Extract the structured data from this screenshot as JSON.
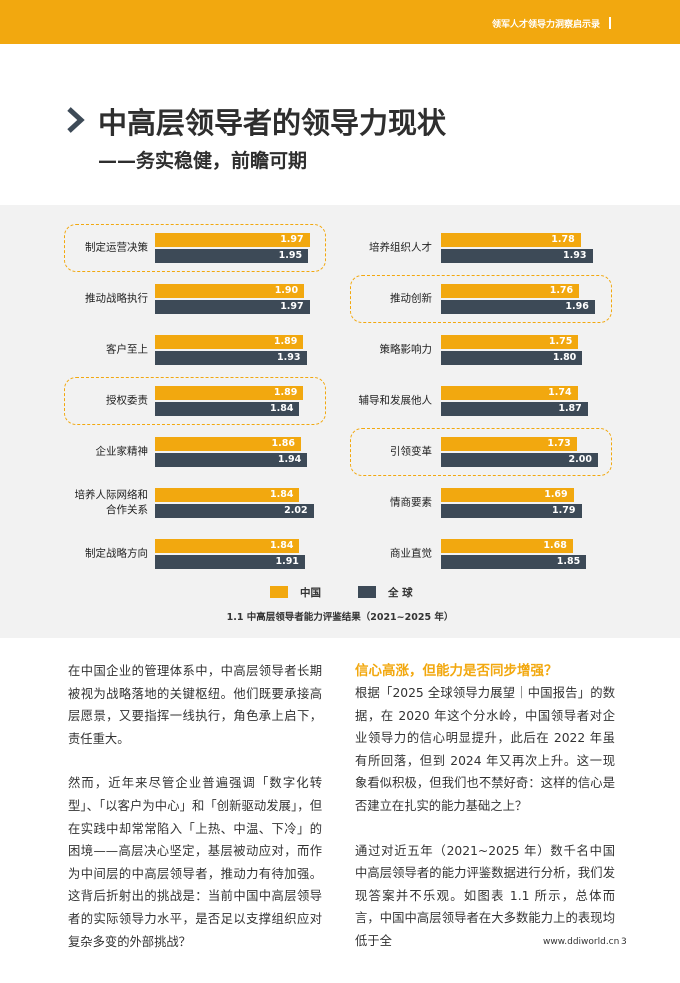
{
  "header": {
    "series_title": "领军人才领导力洞察启示录"
  },
  "title": "中高层领导者的领导力现状",
  "subtitle": "——务实稳健，前瞻可期",
  "chart_data": {
    "type": "bar",
    "orientation": "horizontal",
    "categories": [
      "制定运营决策",
      "推动战略执行",
      "客户至上",
      "授权委责",
      "企业家精神",
      "培养人际网络和\n合作关系",
      "制定战略方向",
      "培养组织人才",
      "推动创新",
      "策略影响力",
      "辅导和发展他人",
      "引领变革",
      "情商要素",
      "商业直觉"
    ],
    "series": [
      {
        "name": "中国",
        "color": "#f2a80f",
        "values": [
          1.97,
          1.9,
          1.89,
          1.89,
          1.86,
          1.84,
          1.84,
          1.78,
          1.76,
          1.75,
          1.74,
          1.73,
          1.69,
          1.68
        ],
        "value_labels": [
          "1.97",
          "1.90",
          "1.89",
          "1.89",
          "1.86",
          "1.84",
          "1.84",
          "1.78",
          "1.76",
          "1.75",
          "1.74",
          "1.73",
          "1.69",
          "1.68"
        ]
      },
      {
        "name": "全 球",
        "color": "#3d4a57",
        "values": [
          1.95,
          1.97,
          1.93,
          1.84,
          1.94,
          2.02,
          1.91,
          1.93,
          1.96,
          1.8,
          1.87,
          2.0,
          1.79,
          1.85
        ],
        "value_labels": [
          "1.95",
          "1.97",
          "1.93",
          "1.84",
          "1.94",
          "2.02",
          "1.91",
          "1.93",
          "1.96",
          "1.80",
          "1.87",
          "2.00",
          "1.79",
          "1.85"
        ]
      }
    ],
    "highlighted": [
      0,
      3,
      8,
      11
    ],
    "caption": "1.1 中高层领导者能力评鉴结果（2021~2025 年）"
  },
  "body": {
    "left": [
      "在中国企业的管理体系中，中高层领导者长期被视为战略落地的关键枢纽。他们既要承接高层愿景，又要指挥一线执行，角色承上启下，责任重大。",
      "然而，近年来尽管企业普遍强调「数字化转型」、「以客户为中心」和「创新驱动发展」，但在实践中却常常陷入「上热、中温、下冷」的困境——高层决心坚定，基层被动应对，而作为中间层的中高层领导者，推动力有待加强。这背后折射出的挑战是：当前中国中高层领导者的实际领导力水平，是否足以支撑组织应对复杂多变的外部挑战？"
    ],
    "right_heading": "信心高涨，但能力是否同步增强？",
    "right": [
      "根据「2025 全球领导力展望｜中国报告」的数据，在 2020 年这个分水岭，中国领导者对企业领导力的信心明显提升，此后在 2022 年虽有所回落，但到 2024 年又再次上升。这一现象看似积极，但我们也不禁好奇：这样的信心是否建立在扎实的能力基础之上？",
      "通过对近五年（2021~2025 年）数千名中国中高层领导者的能力评鉴数据进行分析，我们发现答案并不乐观。如图表 1.1 所示，总体而言，中国中高层领导者在大多数能力上的表现均低于全"
    ]
  },
  "footer": {
    "url": "www.ddiworld.cn",
    "page": "3"
  }
}
